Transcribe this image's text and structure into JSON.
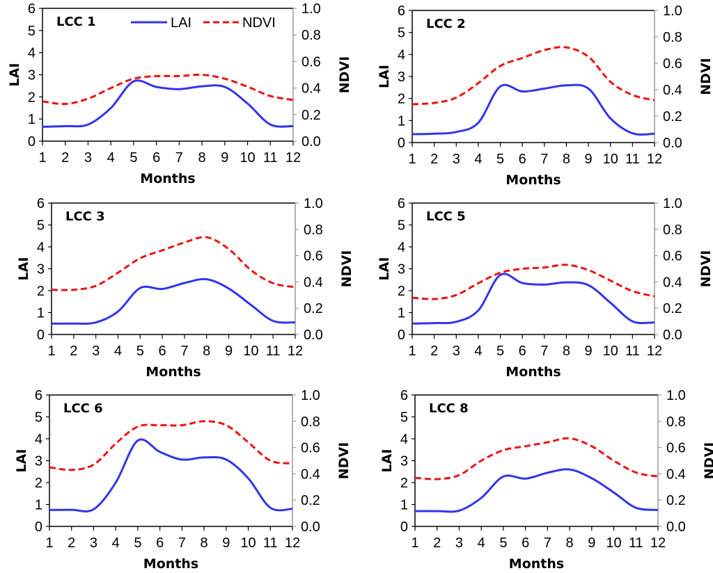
{
  "chart_data": {
    "type": "line",
    "layout": "3x2 grid of dual-axis line charts",
    "legend": {
      "entries": [
        "LAI",
        "NDVI"
      ],
      "placement": "top-right of first panel"
    },
    "series_styles": {
      "LAI": {
        "color": "#3333ee",
        "style": "solid",
        "axis": "left"
      },
      "NDVI": {
        "color": "#ee1111",
        "style": "dashed",
        "axis": "right"
      }
    },
    "panels": [
      {
        "title": "LCC 1",
        "xlabel": "Months",
        "ylabel_left": "LAI",
        "ylabel_right": "NDVI",
        "x": [
          1,
          2,
          3,
          4,
          5,
          6,
          7,
          8,
          9,
          10,
          11,
          12
        ],
        "xticks": [
          "1",
          "2",
          "3",
          "4",
          "5",
          "6",
          "7",
          "8",
          "9",
          "10",
          "11",
          "12"
        ],
        "ylim_left": [
          0,
          6
        ],
        "yticks_left": [
          "0",
          "1",
          "2",
          "3",
          "4",
          "5",
          "6"
        ],
        "ylim_right": [
          0,
          1.0
        ],
        "yticks_right": [
          "0.0",
          "0.2",
          "0.4",
          "0.6",
          "0.8",
          "1.0"
        ],
        "series": [
          {
            "name": "LAI",
            "values": [
              0.65,
              0.68,
              0.75,
              1.5,
              2.7,
              2.45,
              2.35,
              2.48,
              2.45,
              1.7,
              0.75,
              0.68
            ]
          },
          {
            "name": "NDVI",
            "values": [
              0.3,
              0.28,
              0.32,
              0.4,
              0.47,
              0.49,
              0.49,
              0.5,
              0.47,
              0.41,
              0.34,
              0.31
            ]
          }
        ]
      },
      {
        "title": "LCC 2",
        "xlabel": "Months",
        "ylabel_left": "LAI",
        "ylabel_right": "NDVI",
        "x": [
          1,
          2,
          3,
          4,
          5,
          6,
          7,
          8,
          9,
          10,
          11,
          12
        ],
        "xticks": [
          "1",
          "2",
          "3",
          "4",
          "5",
          "6",
          "7",
          "8",
          "9",
          "10",
          "11",
          "12"
        ],
        "ylim_left": [
          0,
          6
        ],
        "yticks_left": [
          "0",
          "1",
          "2",
          "3",
          "4",
          "5",
          "6"
        ],
        "ylim_right": [
          0,
          1.0
        ],
        "yticks_right": [
          "0.0",
          "0.2",
          "0.4",
          "0.6",
          "0.8",
          "1.0"
        ],
        "series": [
          {
            "name": "LAI",
            "values": [
              0.38,
              0.4,
              0.48,
              0.9,
              2.55,
              2.32,
              2.45,
              2.6,
              2.45,
              1.1,
              0.42,
              0.4
            ]
          },
          {
            "name": "NDVI",
            "values": [
              0.29,
              0.3,
              0.34,
              0.45,
              0.58,
              0.64,
              0.7,
              0.72,
              0.65,
              0.46,
              0.36,
              0.32
            ]
          }
        ]
      },
      {
        "title": "LCC 3",
        "xlabel": "Months",
        "ylabel_left": "LAI",
        "ylabel_right": "NDVI",
        "x": [
          1,
          2,
          3,
          4,
          5,
          6,
          7,
          8,
          9,
          10,
          11,
          12
        ],
        "xticks": [
          "1",
          "2",
          "3",
          "4",
          "5",
          "6",
          "7",
          "8",
          "9",
          "10",
          "11",
          "12"
        ],
        "ylim_left": [
          0,
          6
        ],
        "yticks_left": [
          "0",
          "1",
          "2",
          "3",
          "4",
          "5",
          "6"
        ],
        "ylim_right": [
          0,
          1.0
        ],
        "yticks_right": [
          "0.0",
          "0.2",
          "0.4",
          "0.6",
          "0.8",
          "1.0"
        ],
        "series": [
          {
            "name": "LAI",
            "values": [
              0.5,
              0.5,
              0.55,
              1.05,
              2.12,
              2.08,
              2.35,
              2.52,
              2.1,
              1.35,
              0.62,
              0.55
            ]
          },
          {
            "name": "NDVI",
            "values": [
              0.34,
              0.34,
              0.37,
              0.47,
              0.58,
              0.64,
              0.7,
              0.74,
              0.65,
              0.49,
              0.39,
              0.36
            ]
          }
        ]
      },
      {
        "title": "LCC 5",
        "xlabel": "Months",
        "ylabel_left": "LAI",
        "ylabel_right": "NDVI",
        "x": [
          1,
          2,
          3,
          4,
          5,
          6,
          7,
          8,
          9,
          10,
          11,
          12
        ],
        "xticks": [
          "1",
          "2",
          "3",
          "4",
          "5",
          "6",
          "7",
          "8",
          "9",
          "10",
          "11",
          "12"
        ],
        "ylim_left": [
          0,
          6
        ],
        "yticks_left": [
          "0",
          "1",
          "2",
          "3",
          "4",
          "5",
          "6"
        ],
        "ylim_right": [
          0,
          1.0
        ],
        "yticks_right": [
          "0.0",
          "0.2",
          "0.4",
          "0.6",
          "0.8",
          "1.0"
        ],
        "series": [
          {
            "name": "LAI",
            "values": [
              0.5,
              0.52,
              0.58,
              1.1,
              2.72,
              2.35,
              2.28,
              2.38,
              2.25,
              1.45,
              0.6,
              0.55
            ]
          },
          {
            "name": "NDVI",
            "values": [
              0.28,
              0.27,
              0.3,
              0.39,
              0.47,
              0.5,
              0.51,
              0.53,
              0.49,
              0.41,
              0.33,
              0.29
            ]
          }
        ]
      },
      {
        "title": "LCC 6",
        "xlabel": "Months",
        "ylabel_left": "LAI",
        "ylabel_right": "NDVI",
        "x": [
          1,
          2,
          3,
          4,
          5,
          6,
          7,
          8,
          9,
          10,
          11,
          12
        ],
        "xticks": [
          "1",
          "2",
          "3",
          "4",
          "5",
          "6",
          "7",
          "8",
          "9",
          "10",
          "11",
          "12"
        ],
        "ylim_left": [
          0,
          6
        ],
        "yticks_left": [
          "0",
          "1",
          "2",
          "3",
          "4",
          "5",
          "6"
        ],
        "ylim_right": [
          0,
          1.0
        ],
        "yticks_right": [
          "0.0",
          "0.2",
          "0.4",
          "0.6",
          "0.8",
          "1.0"
        ],
        "series": [
          {
            "name": "LAI",
            "values": [
              0.75,
              0.76,
              0.78,
              2.0,
              3.92,
              3.4,
              3.05,
              3.15,
              3.05,
              2.2,
              0.85,
              0.8
            ]
          },
          {
            "name": "NDVI",
            "values": [
              0.45,
              0.43,
              0.47,
              0.63,
              0.76,
              0.77,
              0.77,
              0.8,
              0.77,
              0.64,
              0.5,
              0.48
            ]
          }
        ]
      },
      {
        "title": "LCC 8",
        "xlabel": "Months",
        "ylabel_left": "LAI",
        "ylabel_right": "NDVI",
        "x": [
          1,
          2,
          3,
          4,
          5,
          6,
          7,
          8,
          9,
          10,
          11,
          12
        ],
        "xticks": [
          "1",
          "2",
          "3",
          "4",
          "5",
          "6",
          "7",
          "8",
          "9",
          "10",
          "11",
          "12"
        ],
        "ylim_left": [
          0,
          6
        ],
        "yticks_left": [
          "0",
          "1",
          "2",
          "3",
          "4",
          "5",
          "6"
        ],
        "ylim_right": [
          0,
          1.0
        ],
        "yticks_right": [
          "0.0",
          "0.2",
          "0.4",
          "0.6",
          "0.8",
          "1.0"
        ],
        "series": [
          {
            "name": "LAI",
            "values": [
              0.7,
              0.7,
              0.72,
              1.3,
              2.28,
              2.18,
              2.45,
              2.6,
              2.2,
              1.55,
              0.85,
              0.75
            ]
          },
          {
            "name": "NDVI",
            "values": [
              0.37,
              0.36,
              0.39,
              0.5,
              0.58,
              0.61,
              0.64,
              0.67,
              0.61,
              0.5,
              0.41,
              0.38
            ]
          }
        ]
      }
    ]
  }
}
